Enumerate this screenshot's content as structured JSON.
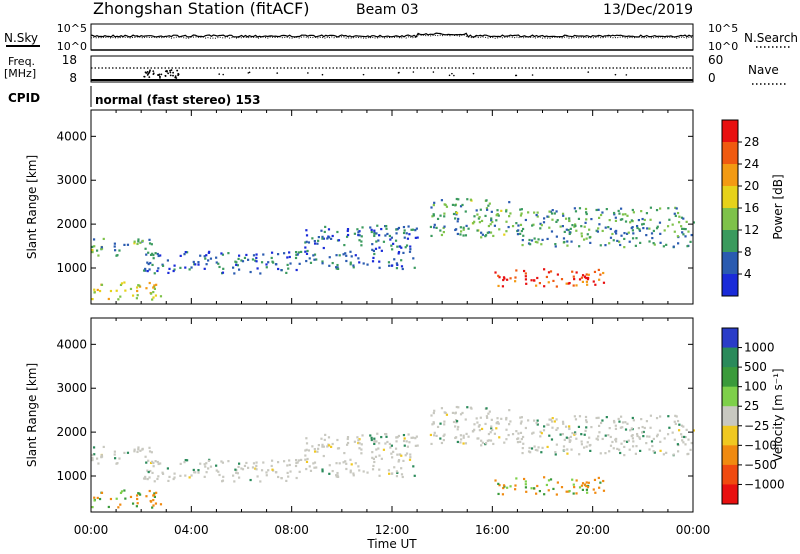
{
  "header": {
    "station": "Zhongshan Station (fitACF)",
    "beam": "Beam 03",
    "date": "13/Dec/2019"
  },
  "chart_data": [
    {
      "type": "line",
      "name_left": "N.Sky",
      "name_right": "N.Search",
      "left_ticks": [
        "10^5",
        "10^0"
      ],
      "right_ticks": [
        "10^5",
        "10^0"
      ]
    },
    {
      "type": "line",
      "label_left_top": "Freq.",
      "label_left_bottom": "[MHz]",
      "left_ticks": [
        "18",
        "8"
      ],
      "label_right": "Nave",
      "right_ticks": [
        "60",
        "0"
      ],
      "cpid_label": "CPID",
      "cpid_text": "normal (fast stereo) 153"
    },
    {
      "type": "heatmap",
      "ylabel": "Slant Range [km]",
      "yticks": [
        1000,
        2000,
        3000,
        4000
      ],
      "ylim": [
        180,
        4600
      ],
      "xlabel": "Time UT",
      "xticks": [
        "00:00",
        "04:00",
        "08:00",
        "12:00",
        "16:00",
        "20:00",
        "00:00"
      ],
      "colorbar": {
        "label": "Power [dB]",
        "ticks": [
          "28",
          "24",
          "20",
          "16",
          "12",
          "8",
          "4"
        ],
        "colors": [
          "#e81010",
          "#f05a10",
          "#f39a12",
          "#e6d21a",
          "#7ec24a",
          "#3a9a5e",
          "#2a5bb0",
          "#1a2bd8"
        ]
      },
      "bands": [
        {
          "t": [
            0.0,
            2.5
          ],
          "r": [
            1300,
            1700
          ],
          "level": 0.35
        },
        {
          "t": [
            0.0,
            2.8
          ],
          "r": [
            300,
            700
          ],
          "level": 0.55
        },
        {
          "t": [
            2.0,
            8.5
          ],
          "r": [
            900,
            1400
          ],
          "level": 0.2
        },
        {
          "t": [
            8.5,
            13.0
          ],
          "r": [
            1000,
            2000
          ],
          "level": 0.2
        },
        {
          "t": [
            13.5,
            17.0
          ],
          "r": [
            1700,
            2600
          ],
          "level": 0.35
        },
        {
          "t": [
            16.0,
            20.5
          ],
          "r": [
            600,
            1000
          ],
          "level": 0.85
        },
        {
          "t": [
            17.0,
            24.0
          ],
          "r": [
            1500,
            2400
          ],
          "level": 0.3
        }
      ]
    },
    {
      "type": "heatmap",
      "ylabel": "Slant Range [km]",
      "yticks": [
        1000,
        2000,
        3000,
        4000
      ],
      "ylim": [
        180,
        4600
      ],
      "xlabel": "Time UT",
      "xticks": [
        "00:00",
        "04:00",
        "08:00",
        "12:00",
        "16:00",
        "20:00",
        "00:00"
      ],
      "colorbar": {
        "label": "Velocity [m s⁻¹]",
        "ticks": [
          "1000",
          "500",
          "100",
          "25",
          "−25",
          "−100",
          "−500",
          "−1000"
        ],
        "colors": [
          "#2a3cc8",
          "#2a8a5a",
          "#3a9a3a",
          "#7ed04a",
          "#c8c8c0",
          "#f0c820",
          "#f08a10",
          "#f04a10",
          "#e81010"
        ]
      }
    }
  ]
}
